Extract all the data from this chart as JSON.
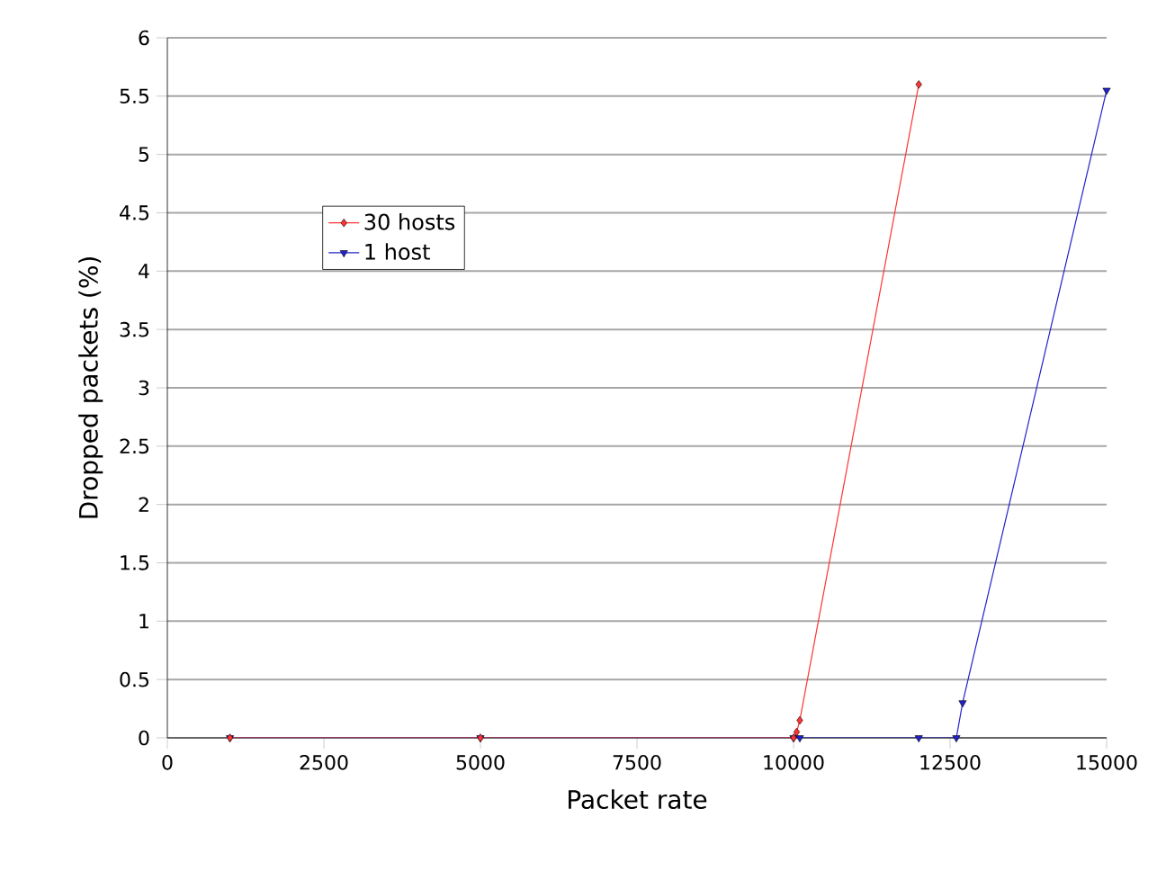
{
  "chart_data": {
    "type": "line",
    "xlabel": "Packet rate",
    "ylabel": "Dropped packets (%)",
    "xlim": [
      0,
      15000
    ],
    "xticks": [
      0,
      2500,
      5000,
      7500,
      10000,
      12500,
      15000
    ],
    "ylim": [
      0,
      6
    ],
    "yticks": [
      0,
      0.5,
      1,
      1.5,
      2,
      2.5,
      3,
      3.5,
      4,
      4.5,
      5,
      5.5,
      6
    ],
    "grid": "y",
    "legend": "top left",
    "series": [
      {
        "name": "30 hosts",
        "color": "#ff3333",
        "marker": "diamond",
        "x": [
          1000,
          5000,
          10000,
          10050,
          10100,
          12000
        ],
        "values": [
          0,
          0,
          0,
          0.05,
          0.15,
          5.6
        ]
      },
      {
        "name": "1 host",
        "color": "#2222cc",
        "marker": "triangle",
        "x": [
          1000,
          5000,
          10000,
          10100,
          12000,
          12600,
          12700,
          15000
        ],
        "values": [
          0,
          0,
          0,
          0,
          0,
          0,
          0.3,
          5.55
        ]
      }
    ]
  }
}
